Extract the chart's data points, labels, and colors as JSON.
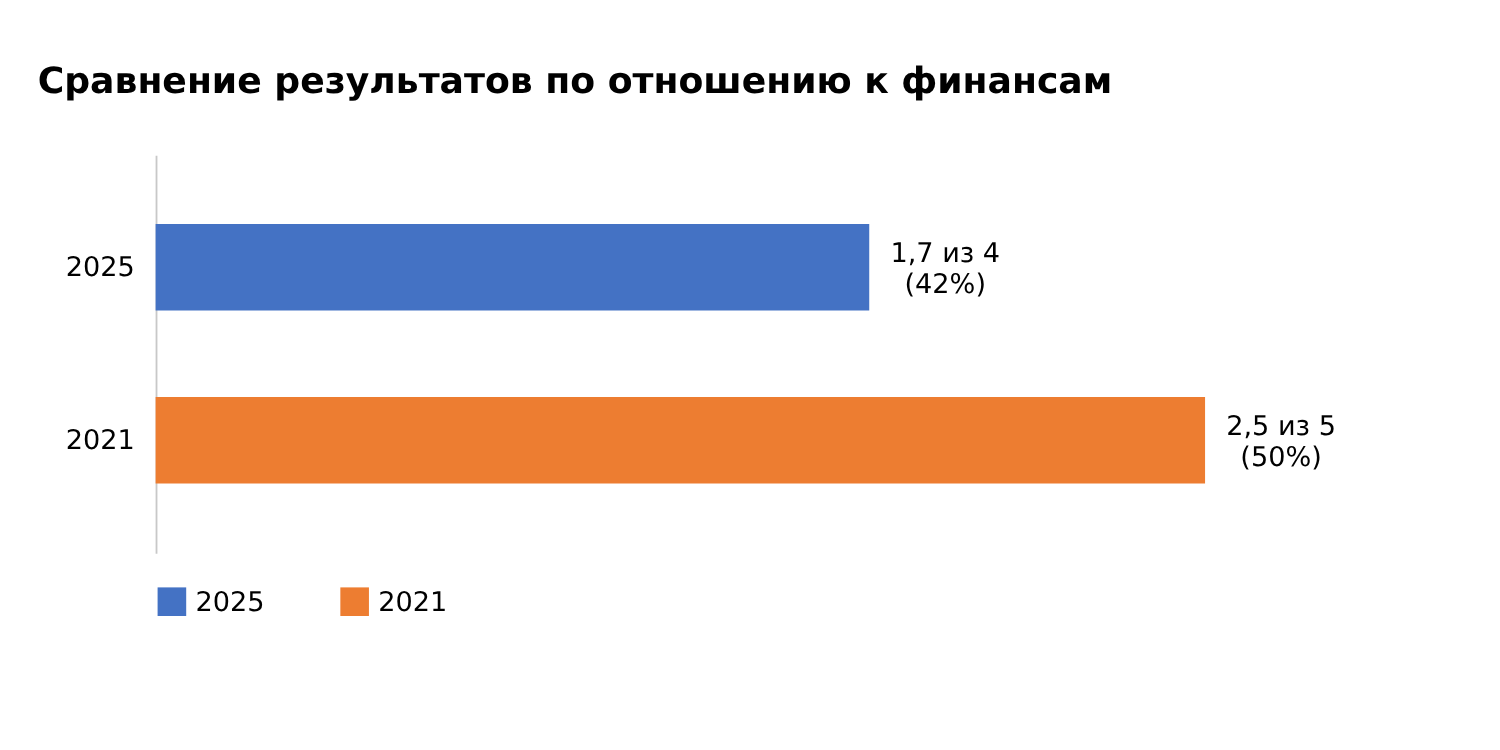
{
  "chart_data": {
    "type": "bar",
    "orientation": "horizontal",
    "title": "Сравнение результатов по отношению к финансам",
    "categories": [
      "2025",
      "2021"
    ],
    "series": [
      {
        "name": "2025",
        "color": "#4472c4",
        "values": [
          1.7,
          null
        ],
        "value_labels": [
          "1,7 из 4\n(42%)",
          null
        ]
      },
      {
        "name": "2021",
        "color": "#ed7d31",
        "values": [
          null,
          2.5
        ],
        "value_labels": [
          null,
          "2,5 из 5\n(50%)"
        ]
      }
    ],
    "legend": "bottom",
    "grid": false
  }
}
